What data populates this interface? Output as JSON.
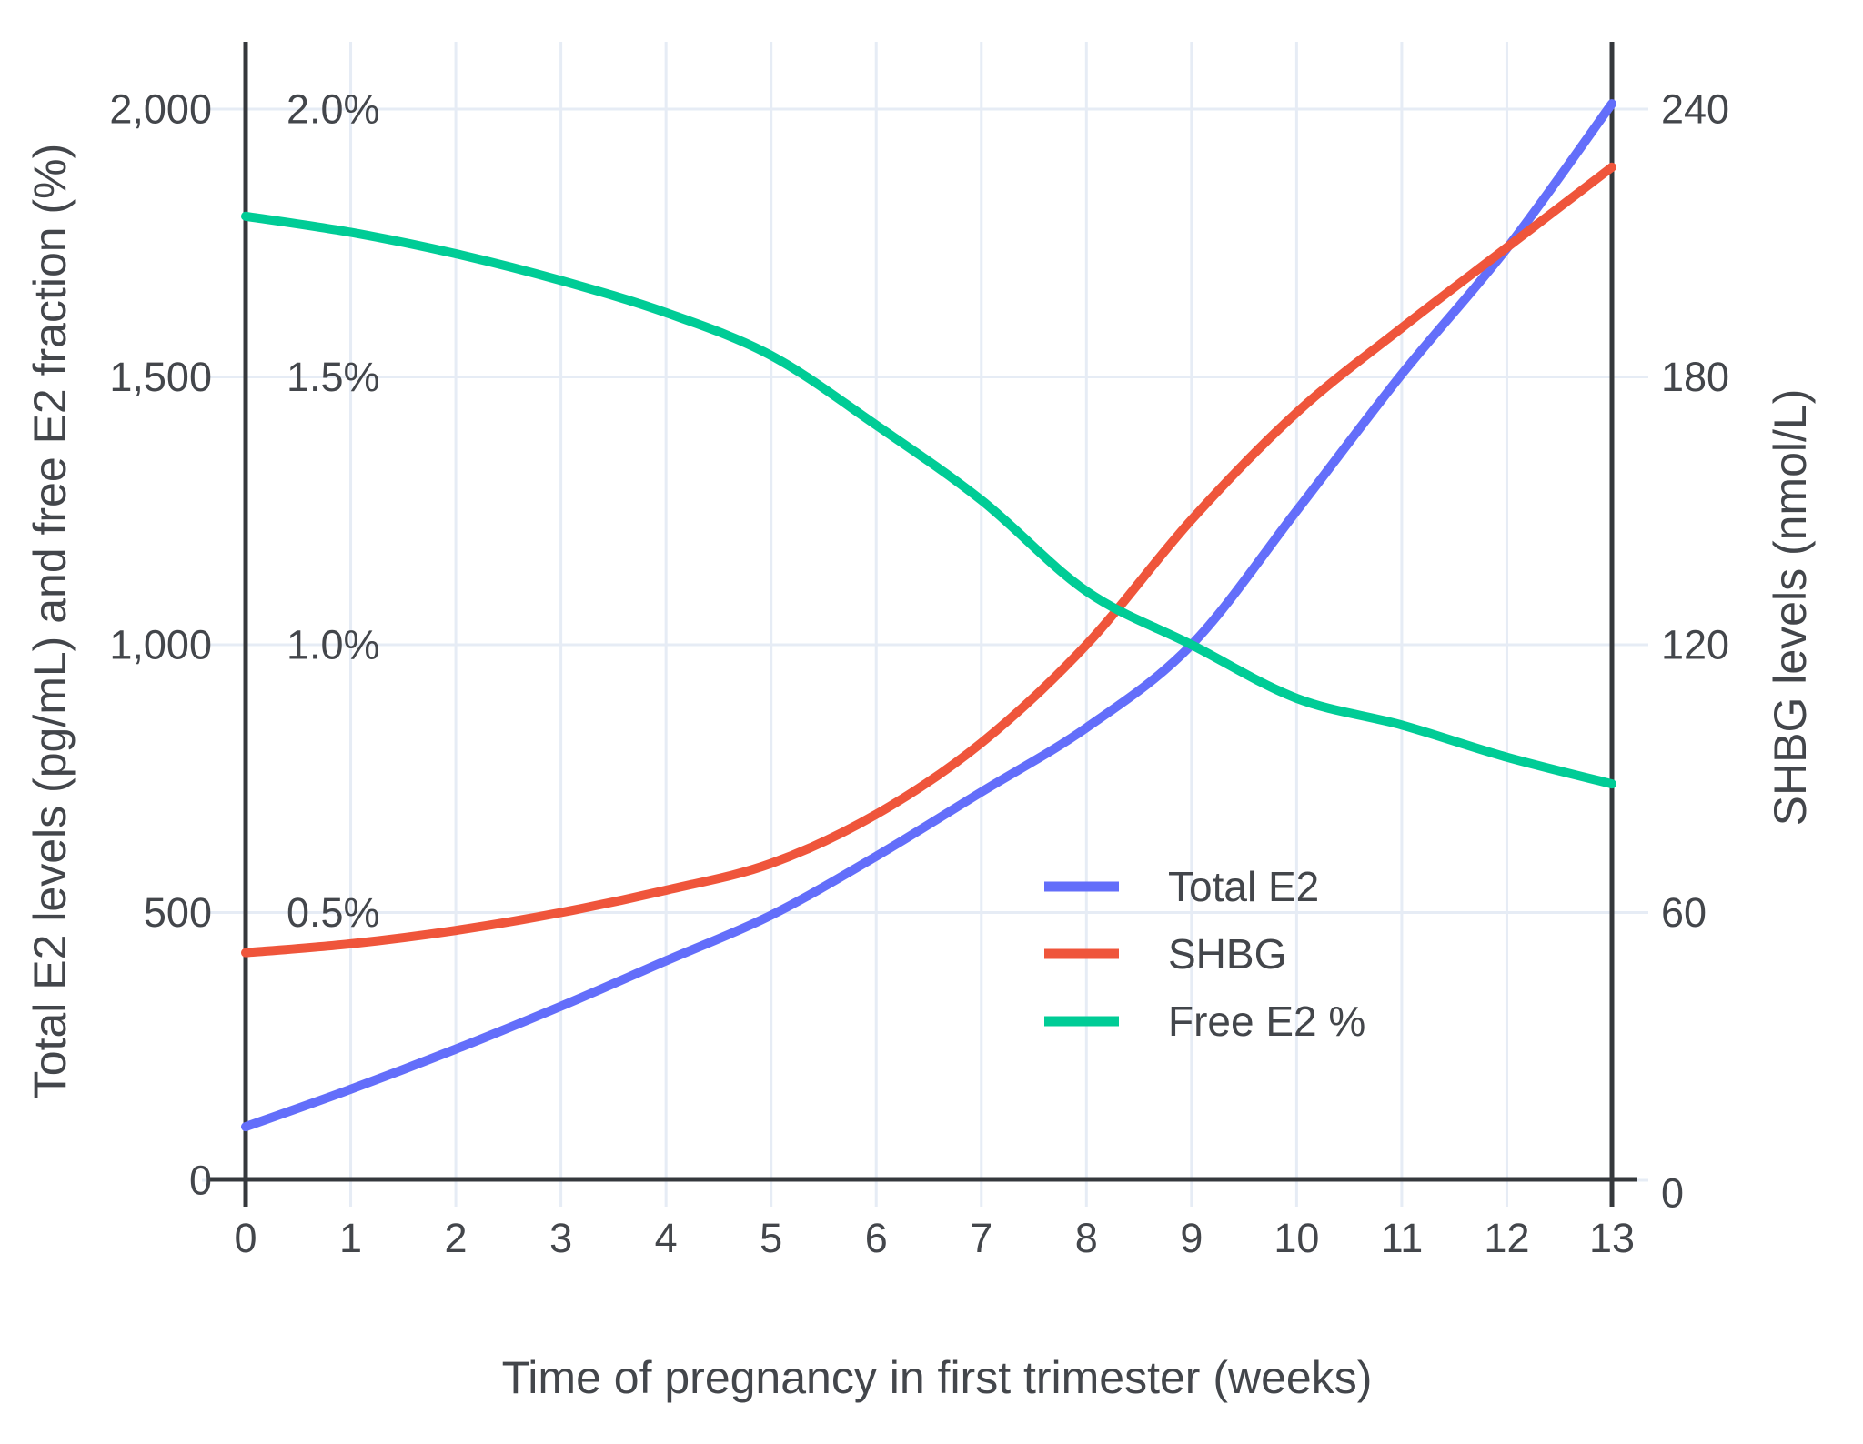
{
  "figure": {
    "titles": {
      "y_left": "Total E2 levels (pg/mL) and free E2 fraction (%)",
      "y_right": "SHBG levels (nmol/L)",
      "x": "Time of pregnancy in first trimester (weeks)"
    },
    "colors": {
      "total_e2": "#636EFA",
      "shbg": "#EF553B",
      "free_e2": "#00CC96",
      "gridline": "#E6ECF5",
      "axis_line": "#35383C",
      "text": "#43464B",
      "background": "#FFFFFF"
    },
    "legend": {
      "items": [
        {
          "label": "Total E2",
          "color": "#636EFA"
        },
        {
          "label": "SHBG",
          "color": "#EF553B"
        },
        {
          "label": "Free E2 %",
          "color": "#00CC96"
        }
      ],
      "position": "inside-right-middle"
    }
  },
  "chart_data": {
    "type": "line",
    "title": "",
    "xlabel": "Time of pregnancy in first trimester (weeks)",
    "ylabel_left": "Total E2 levels (pg/mL) and free E2 fraction (%)",
    "ylabel_right": "SHBG levels (nmol/L)",
    "x": [
      0,
      1,
      2,
      3,
      4,
      5,
      6,
      7,
      8,
      9,
      10,
      11,
      12,
      13
    ],
    "xlim": [
      0,
      13
    ],
    "ylim_left_pg": [
      0,
      2130
    ],
    "ylim_right_nmol": [
      0,
      256
    ],
    "grid": true,
    "legend_position": "inside right",
    "series": [
      {
        "name": "Total E2",
        "axis": "left",
        "unit": "pg/mL",
        "color": "#636EFA",
        "values": [
          100,
          170,
          245,
          325,
          410,
          495,
          605,
          725,
          845,
          1000,
          1250,
          1505,
          1740,
          2010
        ]
      },
      {
        "name": "SHBG",
        "axis": "right",
        "unit": "nmol/L",
        "color": "#EF553B",
        "values": [
          51,
          53,
          56,
          60,
          65,
          71,
          82,
          98,
          120,
          148,
          172,
          191,
          209,
          227
        ]
      },
      {
        "name": "Free E2 %",
        "axis": "left-percent",
        "unit": "%",
        "color": "#00CC96",
        "values": [
          1.8,
          1.77,
          1.73,
          1.68,
          1.62,
          1.54,
          1.41,
          1.27,
          1.1,
          1.0,
          0.9,
          0.85,
          0.79,
          0.74
        ]
      }
    ],
    "axes": {
      "x_ticks": [
        {
          "v": 0,
          "label": "0"
        },
        {
          "v": 1,
          "label": "1"
        },
        {
          "v": 2,
          "label": "2"
        },
        {
          "v": 3,
          "label": "3"
        },
        {
          "v": 4,
          "label": "4"
        },
        {
          "v": 5,
          "label": "5"
        },
        {
          "v": 6,
          "label": "6"
        },
        {
          "v": 7,
          "label": "7"
        },
        {
          "v": 8,
          "label": "8"
        },
        {
          "v": 9,
          "label": "9"
        },
        {
          "v": 10,
          "label": "10"
        },
        {
          "v": 11,
          "label": "11"
        },
        {
          "v": 12,
          "label": "12"
        },
        {
          "v": 13,
          "label": "13"
        }
      ],
      "left_pg_ticks": [
        {
          "v": 0,
          "label": "0"
        },
        {
          "v": 500,
          "label": "500"
        },
        {
          "v": 1000,
          "label": "1,000"
        },
        {
          "v": 1500,
          "label": "1,500"
        },
        {
          "v": 2000,
          "label": "2,000"
        }
      ],
      "left_percent_ticks": [
        {
          "v": 0.5,
          "label": "0.5%"
        },
        {
          "v": 1.0,
          "label": "1.0%"
        },
        {
          "v": 1.5,
          "label": "1.5%"
        },
        {
          "v": 2.0,
          "label": "2.0%"
        }
      ],
      "right_nmol_ticks": [
        {
          "v": 0,
          "label": "0"
        },
        {
          "v": 60,
          "label": "60"
        },
        {
          "v": 120,
          "label": "120"
        },
        {
          "v": 180,
          "label": "180"
        },
        {
          "v": 240,
          "label": "240"
        }
      ]
    }
  }
}
